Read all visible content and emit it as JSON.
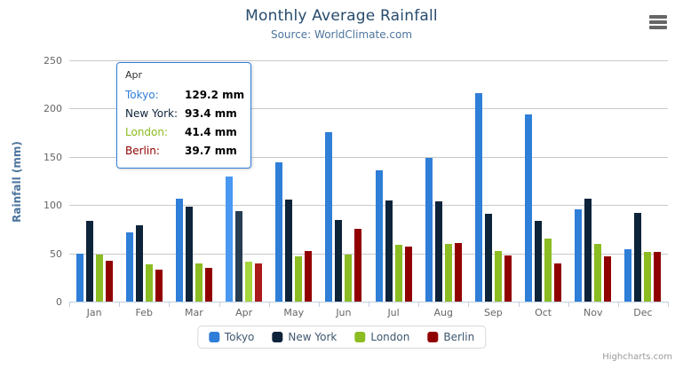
{
  "chart": {
    "title": "Monthly Average Rainfall",
    "subtitle": "Source: WorldClimate.com",
    "credits": "Highcharts.com"
  },
  "chart_data": {
    "type": "bar",
    "orientation": "vertical",
    "title": "Monthly Average Rainfall",
    "subtitle": "Source: WorldClimate.com",
    "xlabel": "",
    "ylabel": "Rainfall (mm)",
    "ylim": [
      0,
      250
    ],
    "yticks": [
      0,
      50,
      100,
      150,
      200,
      250
    ],
    "grid": true,
    "legend_position": "bottom",
    "hover_category": "Apr",
    "categories": [
      "Jan",
      "Feb",
      "Mar",
      "Apr",
      "May",
      "Jun",
      "Jul",
      "Aug",
      "Sep",
      "Oct",
      "Nov",
      "Dec"
    ],
    "series": [
      {
        "name": "Tokyo",
        "color": "#2f7ed8",
        "values": [
          49.9,
          71.5,
          106.4,
          129.2,
          144.0,
          176.0,
          135.6,
          148.5,
          216.4,
          194.1,
          95.6,
          54.4
        ]
      },
      {
        "name": "New York",
        "color": "#0d233a",
        "values": [
          83.6,
          78.8,
          98.5,
          93.4,
          106.0,
          84.5,
          105.0,
          104.3,
          91.2,
          83.5,
          106.6,
          92.3
        ]
      },
      {
        "name": "London",
        "color": "#8bbc21",
        "values": [
          48.9,
          38.8,
          39.3,
          41.4,
          47.0,
          48.3,
          59.0,
          59.6,
          52.4,
          65.2,
          59.3,
          51.2
        ]
      },
      {
        "name": "Berlin",
        "color": "#910000",
        "values": [
          42.4,
          33.2,
          34.5,
          39.7,
          52.6,
          75.5,
          57.4,
          60.4,
          47.6,
          39.1,
          46.8,
          51.1
        ]
      }
    ]
  },
  "tooltip": {
    "header": "Apr",
    "border_color": "#2f7ed8",
    "rows": [
      {
        "label": "Tokyo:",
        "value": "129.2 mm",
        "color": "#2f7ed8"
      },
      {
        "label": "New York:",
        "value": "93.4 mm",
        "color": "#0d233a"
      },
      {
        "label": "London:",
        "value": "41.4 mm",
        "color": "#8bbc21"
      },
      {
        "label": "Berlin:",
        "value": "39.7 mm",
        "color": "#910000"
      }
    ]
  },
  "colors": {
    "grid": "#c9c9c9",
    "axis_line": "#c0d0e0",
    "axis_label": "#666666",
    "title": "#274b6d",
    "subtitle": "#4d759e",
    "legend_text": "#3E576F"
  }
}
